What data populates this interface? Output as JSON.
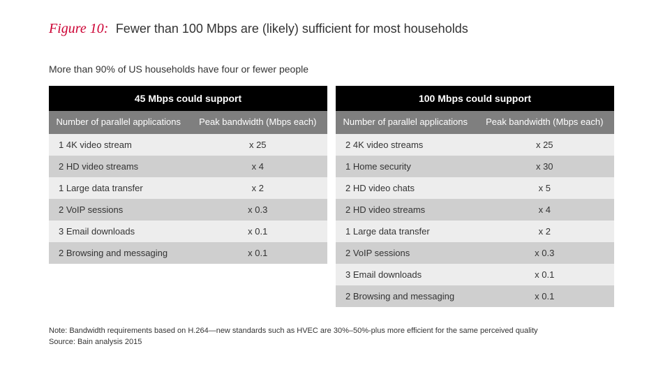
{
  "figure": {
    "label": "Figure 10:",
    "caption": "Fewer than 100 Mbps are (likely) sufficient for most households"
  },
  "subtitle": "More than 90% of US households have four or fewer people",
  "colors": {
    "accent": "#cc0033",
    "table_title_bg": "#000000",
    "table_header_bg": "#7f7f7f",
    "row_odd": "#ededed",
    "row_even": "#cfcfcf",
    "text": "#333333",
    "background": "#ffffff"
  },
  "tables": [
    {
      "title": "45 Mbps could support",
      "col1": "Number of parallel applications",
      "col2": "Peak bandwidth (Mbps each)",
      "rows": [
        {
          "app": "1 4K video stream",
          "bw": "x 25"
        },
        {
          "app": "2 HD video streams",
          "bw": "x 4"
        },
        {
          "app": "1 Large data transfer",
          "bw": "x 2"
        },
        {
          "app": "2 VoIP sessions",
          "bw": "x 0.3"
        },
        {
          "app": "3 Email downloads",
          "bw": "x 0.1"
        },
        {
          "app": "2 Browsing and messaging",
          "bw": "x 0.1"
        }
      ]
    },
    {
      "title": "100 Mbps could support",
      "col1": "Number of parallel applications",
      "col2": "Peak bandwidth (Mbps each)",
      "rows": [
        {
          "app": "2 4K video streams",
          "bw": "x 25"
        },
        {
          "app": "1 Home security",
          "bw": "x 30"
        },
        {
          "app": "2 HD video chats",
          "bw": "x 5"
        },
        {
          "app": "2 HD video streams",
          "bw": "x 4"
        },
        {
          "app": "1 Large data transfer",
          "bw": "x 2"
        },
        {
          "app": "2 VoIP sessions",
          "bw": "x 0.3"
        },
        {
          "app": "3 Email downloads",
          "bw": "x 0.1"
        },
        {
          "app": "2 Browsing and messaging",
          "bw": "x 0.1"
        }
      ]
    }
  ],
  "footnote": {
    "note": "Note: Bandwidth requirements based on H.264—new standards such as HVEC are 30%–50%-plus more efficient for the same perceived quality",
    "source": "Source: Bain analysis 2015"
  }
}
